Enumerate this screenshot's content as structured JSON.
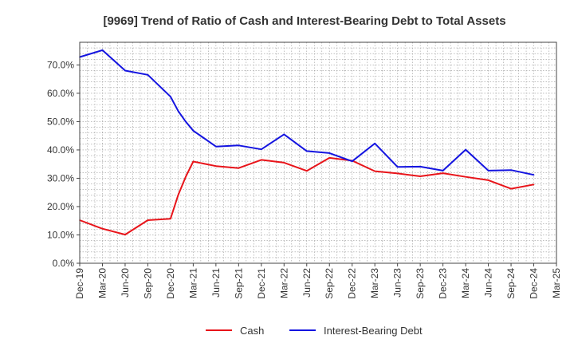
{
  "chart_data": {
    "type": "line",
    "title": "[9969]  Trend of Ratio of Cash and Interest-Bearing Debt to Total Assets",
    "x_tick_labels": [
      "Dec-19",
      "Mar-20",
      "Jun-20",
      "Sep-20",
      "Dec-20",
      "Mar-21",
      "Jun-21",
      "Sep-21",
      "Dec-21",
      "Mar-22",
      "Jun-22",
      "Sep-22",
      "Dec-22",
      "Mar-23",
      "Jun-23",
      "Sep-23",
      "Dec-23",
      "Mar-24",
      "Jun-24",
      "Sep-24",
      "Dec-24",
      "Mar-25"
    ],
    "y_tick_labels": [
      "0.0%",
      "10.0%",
      "20.0%",
      "30.0%",
      "40.0%",
      "50.0%",
      "60.0%",
      "70.0%"
    ],
    "ylim": [
      0,
      78
    ],
    "grid": true,
    "legend_position": "bottom",
    "series": [
      {
        "name": "Cash",
        "color": "#e8141a",
        "points": [
          [
            "Dec-19",
            15.2
          ],
          [
            "Mar-20",
            12.2
          ],
          [
            "Jun-20",
            10.1
          ],
          [
            "Sep-20",
            15.2
          ],
          [
            "Dec-20",
            15.7
          ],
          [
            "Jan-21",
            24.0
          ],
          [
            "Feb-21",
            30.5
          ],
          [
            "Mar-21",
            35.9
          ],
          [
            "Jun-21",
            34.3
          ],
          [
            "Sep-21",
            33.6
          ],
          [
            "Dec-21",
            36.5
          ],
          [
            "Mar-22",
            35.5
          ],
          [
            "Jun-22",
            32.6
          ],
          [
            "Sep-22",
            37.2
          ],
          [
            "Dec-22",
            36.2
          ],
          [
            "Mar-23",
            32.5
          ],
          [
            "Jun-23",
            31.7
          ],
          [
            "Sep-23",
            30.7
          ],
          [
            "Dec-23",
            31.8
          ],
          [
            "Mar-24",
            30.5
          ],
          [
            "Jun-24",
            29.3
          ],
          [
            "Sep-24",
            26.3
          ],
          [
            "Dec-24",
            27.8
          ]
        ]
      },
      {
        "name": "Interest-Bearing Debt",
        "color": "#1414e0",
        "points": [
          [
            "Dec-19",
            72.8
          ],
          [
            "Mar-20",
            75.2
          ],
          [
            "Jun-20",
            68.0
          ],
          [
            "Sep-20",
            66.5
          ],
          [
            "Dec-20",
            58.8
          ],
          [
            "Jan-21",
            53.8
          ],
          [
            "Feb-21",
            50.0
          ],
          [
            "Mar-21",
            46.8
          ],
          [
            "Jun-21",
            41.2
          ],
          [
            "Sep-21",
            41.6
          ],
          [
            "Dec-21",
            40.2
          ],
          [
            "Mar-22",
            45.5
          ],
          [
            "Jun-22",
            39.6
          ],
          [
            "Sep-22",
            38.9
          ],
          [
            "Dec-22",
            36.0
          ],
          [
            "Mar-23",
            42.3
          ],
          [
            "Jun-23",
            34.0
          ],
          [
            "Sep-23",
            34.1
          ],
          [
            "Dec-23",
            32.7
          ],
          [
            "Mar-24",
            40.1
          ],
          [
            "Jun-24",
            32.7
          ],
          [
            "Sep-24",
            32.9
          ],
          [
            "Dec-24",
            31.2
          ]
        ]
      }
    ]
  }
}
